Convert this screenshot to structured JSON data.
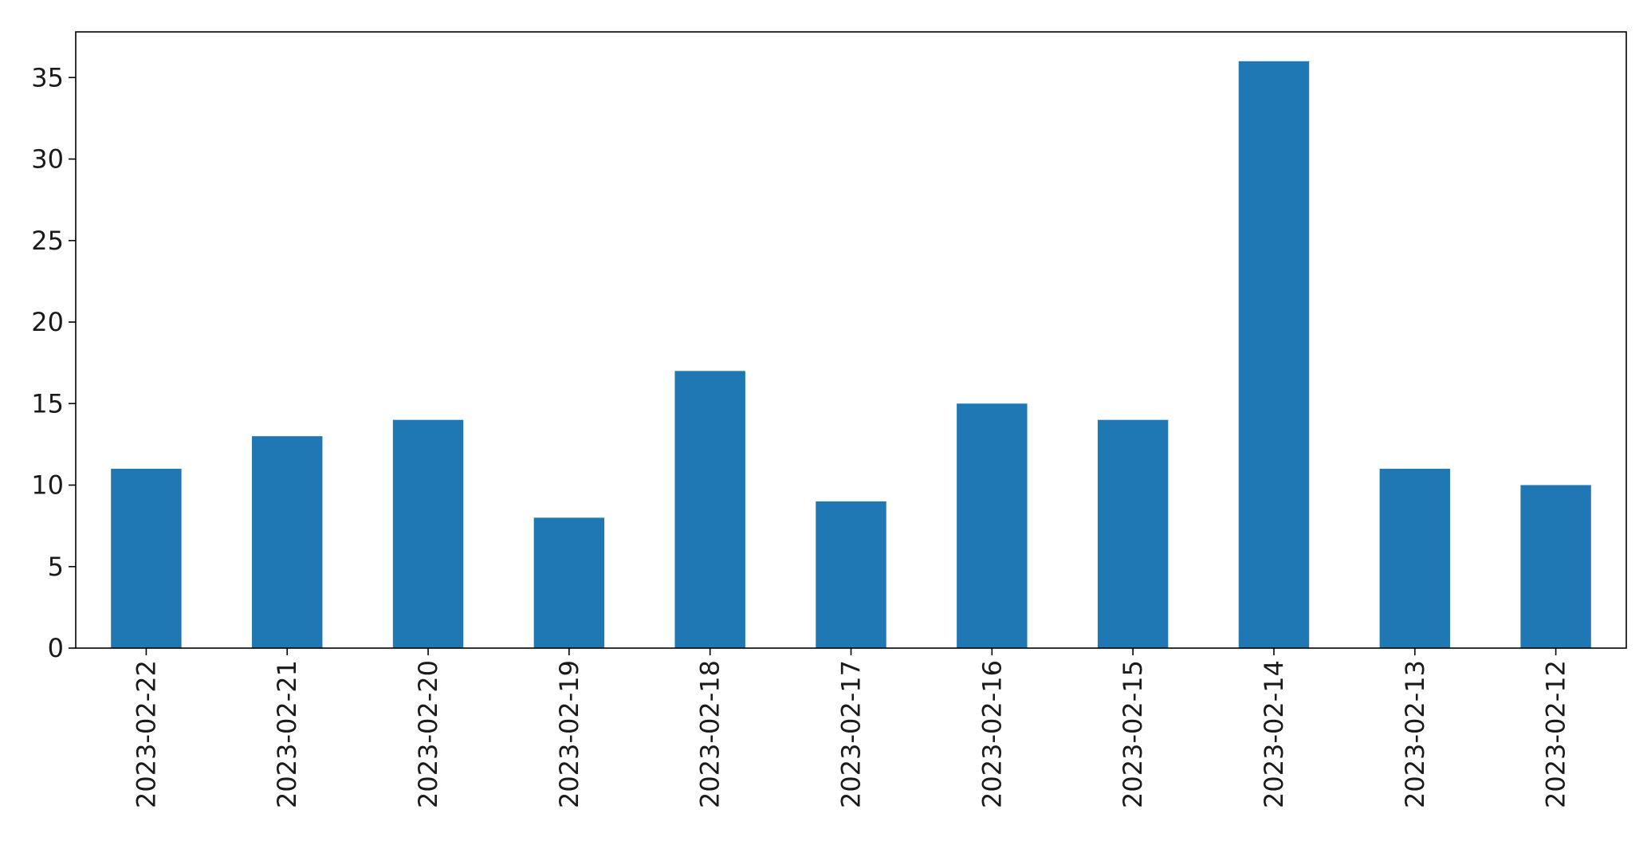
{
  "chart_data": {
    "type": "bar",
    "title": "",
    "xlabel": "",
    "ylabel": "",
    "categories": [
      "2023-02-22",
      "2023-02-21",
      "2023-02-20",
      "2023-02-19",
      "2023-02-18",
      "2023-02-17",
      "2023-02-16",
      "2023-02-15",
      "2023-02-14",
      "2023-02-13",
      "2023-02-12"
    ],
    "values": [
      11,
      13,
      14,
      8,
      17,
      9,
      15,
      14,
      36,
      11,
      10
    ],
    "ylim": [
      0,
      37.8
    ],
    "yticks": [
      0,
      5,
      10,
      15,
      20,
      25,
      30,
      35
    ],
    "grid": false,
    "legend": "none",
    "bar_color": "#1f77b4",
    "axis_color": "#000000"
  }
}
